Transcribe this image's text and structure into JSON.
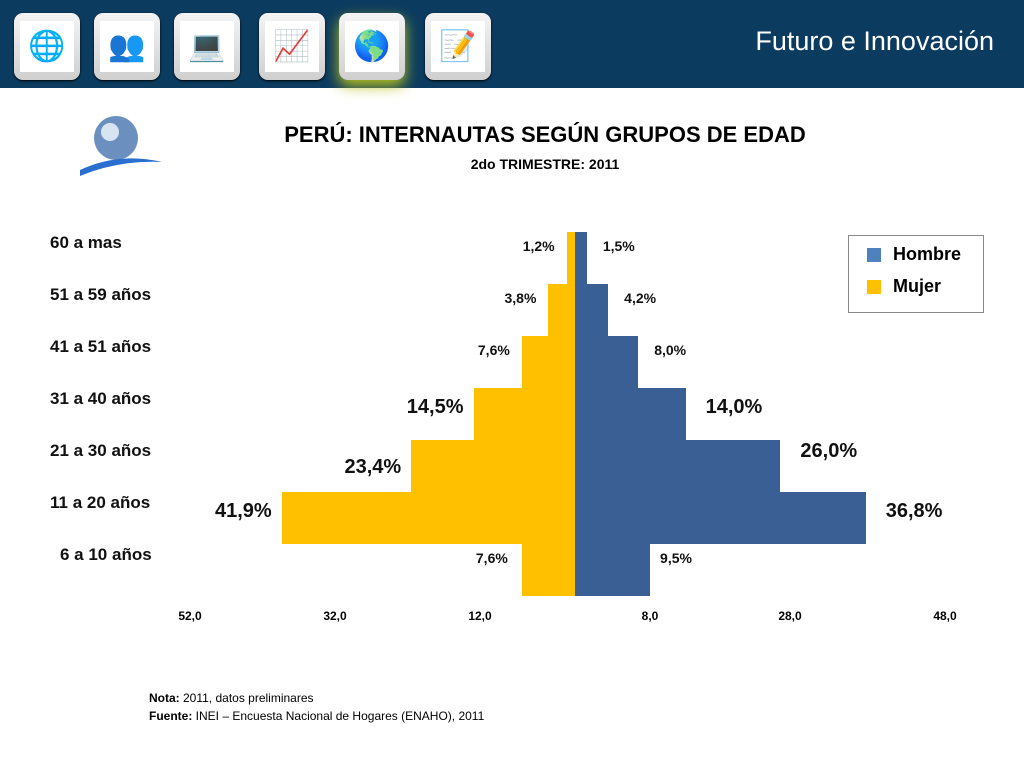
{
  "header": {
    "title": "Futuro e Innovación",
    "tiles": [
      {
        "name": "globe-network-icon",
        "glyph": "🌐"
      },
      {
        "name": "people-meeting-icon",
        "glyph": "👥"
      },
      {
        "name": "computer-network-icon",
        "glyph": "💻"
      },
      {
        "name": "business-growth-icon",
        "glyph": "📈"
      },
      {
        "name": "globe-swoosh-icon",
        "glyph": "🌎"
      },
      {
        "name": "spreadsheet-edit-icon",
        "glyph": "📝"
      }
    ]
  },
  "chart_data": {
    "type": "bar",
    "subtype": "population-pyramid",
    "title": "PERÚ: INTERNAUTAS SEGÚN GRUPOS DE EDAD",
    "subtitle": "2do TRIMESTRE: 2011",
    "categories": [
      "60 a mas",
      "51 a 59 años",
      "41 a 51 años",
      "31 a 40 años",
      "21 a 30 años",
      "11 a 20 años",
      "6 a 10 años"
    ],
    "series": [
      {
        "name": "Hombre",
        "color": "#3a5f94",
        "values": [
          1.5,
          4.2,
          8.0,
          14.0,
          26.0,
          36.8,
          9.5
        ],
        "labels": [
          "1,5%",
          "4,2%",
          "8,0%",
          "14,0%",
          "26,0%",
          "36,8%",
          "9,5%"
        ]
      },
      {
        "name": "Mujer",
        "color": "#ffc000",
        "values": [
          1.2,
          3.8,
          7.6,
          14.5,
          23.4,
          41.9,
          7.6
        ],
        "labels": [
          "1,2%",
          "3,8%",
          "7,6%",
          "14,5%",
          "23,4%",
          "41,9%",
          "7,6%"
        ]
      }
    ],
    "x_ticks": [
      "52,0",
      "32,0",
      "12,0",
      "8,0",
      "28,0",
      "48,0"
    ],
    "legend_position": "top-right",
    "legend_colors": {
      "Hombre": "#4f81bd",
      "Mujer": "#ffc000"
    }
  },
  "notes": {
    "nota_label": "Nota:",
    "nota_text": " 2011, datos preliminares",
    "fuente_label": "Fuente:",
    "fuente_text": " INEI – Encuesta Nacional de Hogares (ENAHO), 2011"
  }
}
